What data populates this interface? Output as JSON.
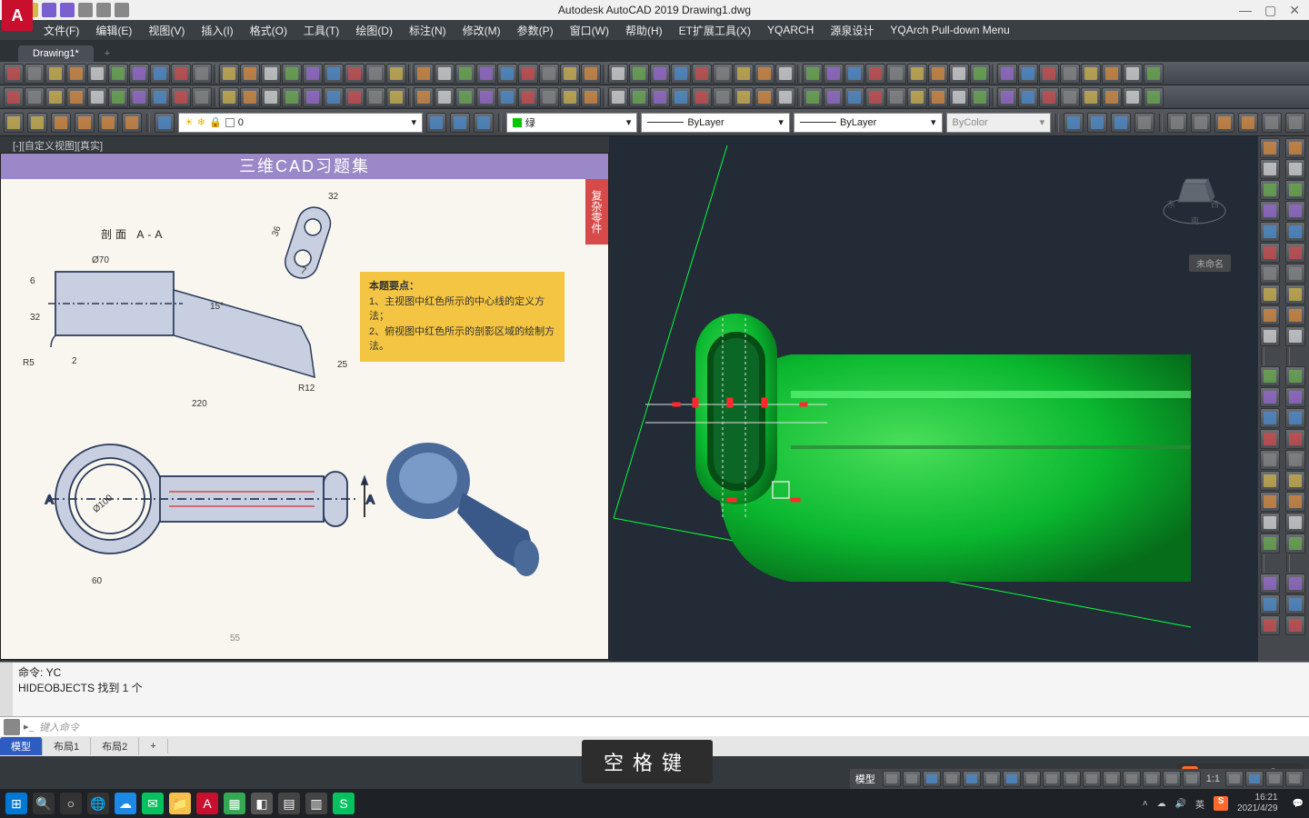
{
  "app": {
    "title": "Autodesk AutoCAD 2019   Drawing1.dwg",
    "logo_letter": "A"
  },
  "menus": [
    "文件(F)",
    "编辑(E)",
    "视图(V)",
    "插入(I)",
    "格式(O)",
    "工具(T)",
    "绘图(D)",
    "标注(N)",
    "修改(M)",
    "参数(P)",
    "窗口(W)",
    "帮助(H)",
    "ET扩展工具(X)",
    "YQARCH",
    "源泉设计",
    "YQArch Pull-down Menu"
  ],
  "doc_tabs": {
    "active": "Drawing1*",
    "add": "+"
  },
  "props": {
    "layer_name": "0",
    "color_name": "绿",
    "ltype": "ByLayer",
    "lweight": "ByLayer",
    "plotstyle": "ByColor",
    "color_swatch": "#00c800"
  },
  "viewport": {
    "label": "[-][自定义视图][真实]"
  },
  "left_panel": {
    "header": "三维CAD习题集",
    "tab": "复杂零件",
    "section_label": "剖面 A-A",
    "note_title": "本题要点：",
    "note_line1": "1、主视图中红色所示的中心线的定义方法；",
    "note_line2": "2、俯视图中红色所示的剖影区域的绘制方法。",
    "dims": {
      "d70": "Ø70",
      "d100": "Ø100",
      "d32": "32",
      "d36": "36",
      "d7": "7",
      "d220": "220",
      "d60": "60",
      "d25": "25",
      "d15deg": "15°",
      "dR5": "R5",
      "dR12": "R12",
      "d6": "6",
      "d322": "32",
      "d2": "2",
      "page": "55"
    },
    "letters": {
      "A1": "A",
      "A2": "A"
    }
  },
  "viewcube_hint": "未命名",
  "cmd": {
    "line1": "命令: YC",
    "line2": "HIDEOBJECTS 找到 1 个",
    "placeholder": "键入命令"
  },
  "model_tabs": [
    "模型",
    "布局1",
    "布局2",
    "+"
  ],
  "status_labels": {
    "model": "模型",
    "ratio": "1:1"
  },
  "overlay_key": "空格键",
  "ime": {
    "logo": "S",
    "lang": "英"
  },
  "taskbar": {
    "icons": [
      {
        "name": "start",
        "bg": "#0078d4",
        "glyph": "⊞"
      },
      {
        "name": "search",
        "bg": "#333",
        "glyph": "🔍"
      },
      {
        "name": "cortana",
        "bg": "#333",
        "glyph": "○"
      },
      {
        "name": "edge",
        "bg": "#333",
        "glyph": "🌐"
      },
      {
        "name": "cloud",
        "bg": "#1e88e5",
        "glyph": "☁"
      },
      {
        "name": "wechat",
        "bg": "#07c160",
        "glyph": "✉"
      },
      {
        "name": "folder",
        "bg": "#f5c04e",
        "glyph": "📁"
      },
      {
        "name": "autocad",
        "bg": "#c8102e",
        "glyph": "A"
      },
      {
        "name": "app2",
        "bg": "#34a853",
        "glyph": "▦"
      },
      {
        "name": "app3",
        "bg": "#555",
        "glyph": "◧"
      },
      {
        "name": "app4",
        "bg": "#444",
        "glyph": "▤"
      },
      {
        "name": "app5",
        "bg": "#444",
        "glyph": "▥"
      },
      {
        "name": "sogou",
        "bg": "#07c160",
        "glyph": "S"
      }
    ],
    "clock_time": "16:21",
    "clock_date": "2021/4/29"
  },
  "colors": {
    "model_green": "#0ab82f",
    "model_green_dark": "#087a22",
    "wire_white": "#e0e0e0",
    "selection_red": "#ff2a2a",
    "guide_green": "#00ff3c"
  }
}
